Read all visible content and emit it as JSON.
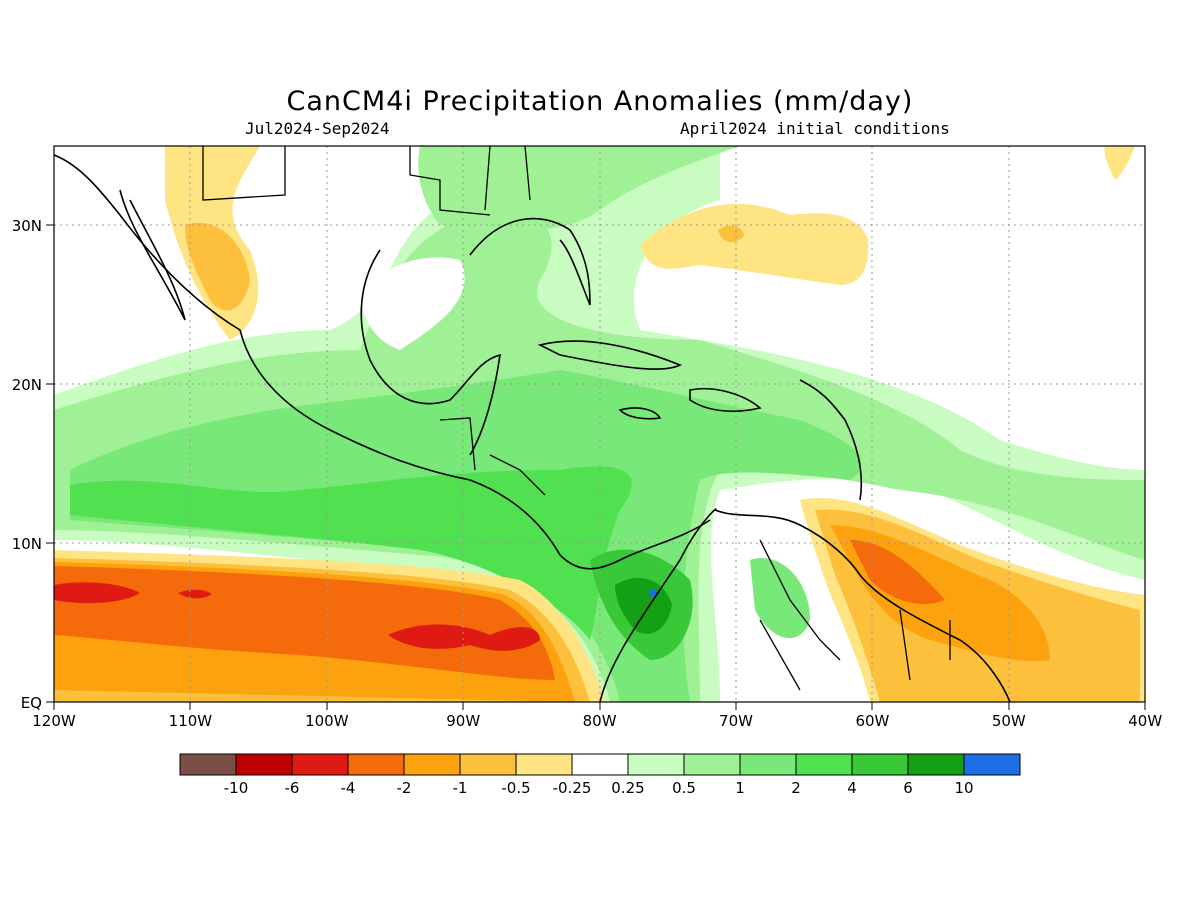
{
  "title": "CanCM4i Precipitation Anomalies (mm/day)",
  "subtitle_left": "Jul2024-Sep2024",
  "subtitle_right": "April2024 initial conditions",
  "lat_labels": [
    "EQ",
    "10N",
    "20N",
    "30N"
  ],
  "lon_labels": [
    "120W",
    "110W",
    "100W",
    "90W",
    "80W",
    "70W",
    "60W",
    "50W",
    "40W"
  ],
  "colorbar": {
    "labels": [
      "-10",
      "-6",
      "-4",
      "-2",
      "-1",
      "-0.5",
      "-0.25",
      "0.25",
      "0.5",
      "1",
      "2",
      "4",
      "6",
      "10"
    ],
    "colors": [
      "#7a4f46",
      "#c00000",
      "#de1a12",
      "#f56a0a",
      "#fba20e",
      "#fdc03c",
      "#fee482",
      "#ffffff",
      "#c8fcc0",
      "#a0f096",
      "#78e878",
      "#50e050",
      "#38c838",
      "#14a014",
      "#1e6ee6"
    ]
  },
  "colors": {
    "dry_light": "#fee482",
    "dry_mid": "#fdc03c",
    "dry_orange": "#fba20e",
    "dry_deep": "#f56a0a",
    "dry_red": "#de1a12",
    "wet_light": "#c8fcc0",
    "wet_mid": "#a0f096",
    "wet_green": "#78e878",
    "wet_bright": "#50e050",
    "wet_dark": "#38c838",
    "wet_darkest": "#14a014",
    "wet_max": "#1e6ee6"
  }
}
